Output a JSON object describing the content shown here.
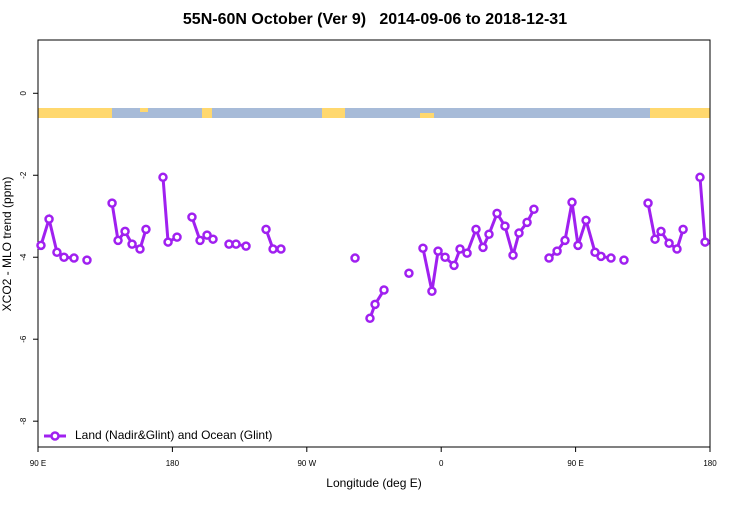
{
  "chart_data": {
    "type": "line",
    "title": "55N-60N October (Ver 9)   2014-09-06 to 2018-12-31",
    "xlabel": "Longitude (deg E)",
    "ylabel": "XCO2 - MLO trend (ppm)",
    "xlim": [
      90,
      540
    ],
    "ylim": [
      1.3,
      -8.63
    ],
    "xticks": [
      {
        "value": 90,
        "label": "90 E"
      },
      {
        "value": 180,
        "label": "180"
      },
      {
        "value": 270,
        "label": "90 W"
      },
      {
        "value": 360,
        "label": "0"
      },
      {
        "value": 450,
        "label": "90 E"
      },
      {
        "value": 540,
        "label": "180"
      }
    ],
    "yticks": [
      0,
      -2,
      -4,
      -6,
      -8
    ],
    "legend": "lower left",
    "series": [
      {
        "name": "Land (Nadir&Glint) and Ocean (Glint)",
        "color": "#a020f0",
        "x": [
          92,
          97.4,
          102.7,
          107.4,
          114.1,
          null,
          122.8,
          null,
          139.6,
          143.6,
          148.3,
          153,
          158.3,
          162.3,
          null,
          173.7,
          177.1,
          183.1,
          null,
          193.1,
          198.5,
          203.2,
          207.2,
          null,
          217.9,
          222.6,
          229.3,
          null,
          242.7,
          247.4,
          252.7,
          null,
          302.3,
          null,
          312.3,
          315.7,
          321.7,
          null,
          338.4,
          null,
          347.8,
          353.8,
          357.9,
          362.6,
          368.6,
          372.6,
          377.3,
          383.3,
          388,
          392,
          397.4,
          402.7,
          408.1,
          412.1,
          417.5,
          422.1,
          null,
          432.2,
          437.6,
          442.9,
          447.6,
          451.6,
          457,
          463,
          467,
          473.7,
          null,
          482.4,
          null,
          498.5,
          503.2,
          507.2,
          512.6,
          517.9,
          522,
          null,
          533.3,
          536.7
        ],
        "values": [
          -3.71,
          -3.07,
          -3.88,
          -4.0,
          -4.02,
          null,
          -4.07,
          null,
          -2.68,
          -3.59,
          -3.37,
          -3.68,
          -3.8,
          -3.32,
          null,
          -2.05,
          -3.63,
          -3.51,
          null,
          -3.02,
          -3.59,
          -3.46,
          -3.56,
          null,
          -3.68,
          -3.68,
          -3.73,
          null,
          -3.32,
          -3.8,
          -3.8,
          null,
          -4.02,
          null,
          -5.49,
          -5.15,
          -4.8,
          null,
          -4.39,
          null,
          -3.78,
          -4.83,
          -3.85,
          -4.0,
          -4.2,
          -3.8,
          -3.9,
          -3.32,
          -3.76,
          -3.44,
          -2.93,
          -3.24,
          -3.95,
          -3.41,
          -3.15,
          -2.83,
          null,
          -4.02,
          -3.85,
          -3.59,
          -2.66,
          -3.71,
          -3.1,
          -3.88,
          -3.98,
          -4.02,
          null,
          -4.07,
          null,
          -2.68,
          -3.56,
          -3.37,
          -3.66,
          -3.8,
          -3.32,
          null,
          -2.05,
          -3.63
        ]
      }
    ]
  }
}
